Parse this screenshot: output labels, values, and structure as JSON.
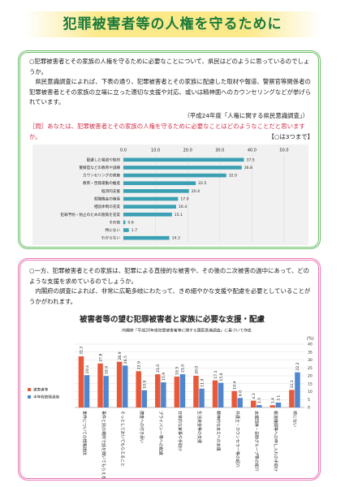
{
  "header": {
    "title": "犯罪被害者等の人権を守るために"
  },
  "section1": {
    "lead": "○犯罪被害者とその家族の人権を守るために必要なことについて、県民はどのように思っているのでしょうか。",
    "body": "県民意識調査によれば、下表の通り、犯罪被害者とその家族に配慮した取材や報道、警察官等関係者の犯罪被害者とその家族の立場に立った適切な支援や対応、或いは精神面へのカウンセリングなどが挙げられています。",
    "source": "（平成24年度「人権に関する県民意識調査」）",
    "question": "［問］あなたは、犯罪被害者とその家族の人権を守るために必要なことはどのようなことだと思いますか。",
    "note": "【○は3つまで】"
  },
  "section2": {
    "lead": "○一方、犯罪被害者とその家族は、犯罪による直接的な被害や、その後の二次被害の過中にあって、どのような支援を求めているのでしょうか。",
    "body": "内閣府の調査によれば、非常に広範多岐にわたって、きめ細やかな支援や配慮を必要としていることがうかがわれます。"
  },
  "chart_data": [
    {
      "type": "bar",
      "horizontal": true,
      "grid": true,
      "categories": [
        "配慮した報道や取材",
        "警察官などの教育や訓練",
        "カウンセリングの実施",
        "教育・啓発運動の推進",
        "経済的支援",
        "就職機会の確保",
        "相談体制の充実",
        "犯罪予防・防止のための施策を充実",
        "その他",
        "特にない",
        "わからない"
      ],
      "values": [
        37.5,
        36.8,
        32.0,
        22.5,
        20.4,
        17.0,
        16.4,
        15.1,
        0.6,
        1.7,
        14.3
      ],
      "value_labels": [
        "37.5",
        "36.8",
        "32.0",
        "22.5",
        "20.4",
        "17.0",
        "16.4",
        "15.1",
        "0.6",
        "1.7",
        "14.3"
      ],
      "color": "#3aa0b4",
      "xlim": [
        0,
        50
      ],
      "xticks": [
        {
          "value": 0,
          "label": "0.0"
        },
        {
          "value": 10,
          "label": "10.0"
        },
        {
          "value": 20,
          "label": "20.0"
        },
        {
          "value": 30,
          "label": "30.0"
        },
        {
          "value": 40,
          "label": "40.0"
        },
        {
          "value": 50,
          "label": "50.0"
        }
      ]
    },
    {
      "type": "bar",
      "horizontal": false,
      "grid": true,
      "title": "被害者等の望む犯罪被害者と家族に必要な支援・配慮",
      "subtitle": "内閣府「平成20年度犯罪被害者等に関する国民意識調査」に基づいて作成",
      "y_label": "(%)",
      "categories": [
        "事件についての情報提供",
        "事件と別の場所で話を聞いてもらえる",
        "そっとしておいてもらえること",
        "捜査への付き添い",
        "プライバシー等への配慮",
        "日常的な家事や手助け",
        "生活資金等の支援",
        "精神的な支えへの支援",
        "弁護士・カウンセラー等の紹介",
        "支援団体・自助グループ等の紹介",
        "報道機関等への申し入れの手助け",
        "特にない"
      ],
      "series": [
        {
          "name": "被害者等",
          "color": "#e8593a",
          "values": [
            32.3,
            27.8,
            28.9,
            22.9,
            21.0,
            19.5,
            20.0,
            17.1,
            10.4,
            4.3,
            1.4,
            11.1
          ],
          "value_labels": [
            "32.3",
            "27.8",
            "28.9",
            "22.9",
            "21.0",
            "19.5",
            "20.0",
            "17.1",
            "10.4",
            "4.3",
            "1.4",
            "11.1"
          ]
        },
        {
          "name": "半年程度経過後",
          "color": "#4f86d0",
          "values": [
            20.4,
            19.9,
            26.5,
            10.9,
            15.9,
            21.0,
            11.9,
            15.6,
            6.0,
            1.5,
            3.1,
            22.2
          ],
          "value_labels": [
            "20.4",
            "19.9",
            "26.5",
            "10.9",
            "15.9",
            "21.0",
            "11.9",
            "15.6",
            "6.0",
            "1.5",
            "3.1",
            "22.2"
          ]
        }
      ],
      "ylim": [
        0,
        40
      ],
      "yticks": [
        0,
        5,
        10,
        15,
        20,
        25,
        30,
        35,
        40
      ]
    }
  ]
}
